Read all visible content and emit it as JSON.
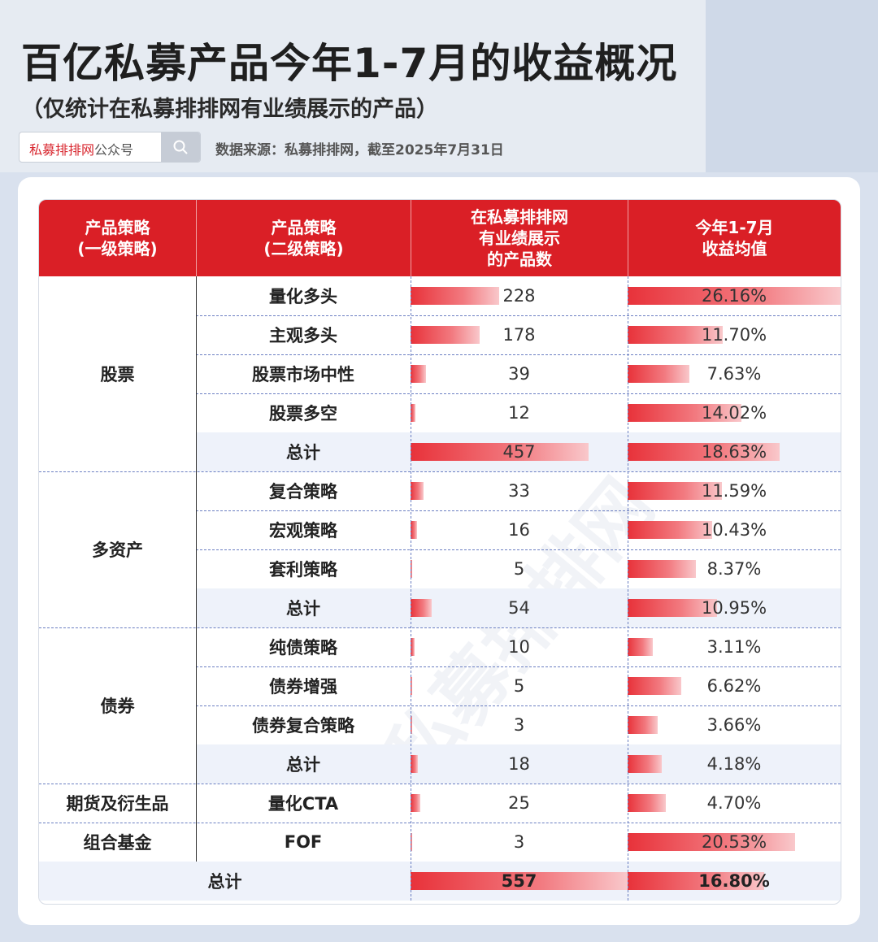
{
  "header": {
    "title": "百亿私募产品今年1-7月的收益概况",
    "subtitle": "（仅统计在私募排排网有业绩展示的产品）",
    "search_brand": "私募排排网",
    "search_suffix": "公众号",
    "source": "数据来源：私募排排网，截至2025年7月31日"
  },
  "watermark": "私募排排网",
  "colors": {
    "header_red": "#da1f26",
    "bar_red": "#e8323a",
    "total_row": "#eef2fa"
  },
  "chart_data": {
    "type": "table",
    "columns": [
      "产品策略\n(一级策略)",
      "产品策略\n(二级策略)",
      "在私募排排网\n有业绩展示\n的产品数",
      "今年1-7月\n收益均值"
    ],
    "groups": [
      {
        "name": "股票",
        "rows": [
          {
            "sub": "量化多头",
            "count": 228,
            "ret": 26.16,
            "ret_label": "26.16%",
            "total": false
          },
          {
            "sub": "主观多头",
            "count": 178,
            "ret": 11.7,
            "ret_label": "11.70%",
            "total": false
          },
          {
            "sub": "股票市场中性",
            "count": 39,
            "ret": 7.63,
            "ret_label": "7.63%",
            "total": false
          },
          {
            "sub": "股票多空",
            "count": 12,
            "ret": 14.02,
            "ret_label": "14.02%",
            "total": false
          },
          {
            "sub": "总计",
            "count": 457,
            "ret": 18.63,
            "ret_label": "18.63%",
            "total": true
          }
        ]
      },
      {
        "name": "多资产",
        "rows": [
          {
            "sub": "复合策略",
            "count": 33,
            "ret": 11.59,
            "ret_label": "11.59%",
            "total": false
          },
          {
            "sub": "宏观策略",
            "count": 16,
            "ret": 10.43,
            "ret_label": "10.43%",
            "total": false
          },
          {
            "sub": "套利策略",
            "count": 5,
            "ret": 8.37,
            "ret_label": "8.37%",
            "total": false
          },
          {
            "sub": "总计",
            "count": 54,
            "ret": 10.95,
            "ret_label": "10.95%",
            "total": true
          }
        ]
      },
      {
        "name": "债券",
        "rows": [
          {
            "sub": "纯债策略",
            "count": 10,
            "ret": 3.11,
            "ret_label": "3.11%",
            "total": false
          },
          {
            "sub": "债券增强",
            "count": 5,
            "ret": 6.62,
            "ret_label": "6.62%",
            "total": false
          },
          {
            "sub": "债券复合策略",
            "count": 3,
            "ret": 3.66,
            "ret_label": "3.66%",
            "total": false
          },
          {
            "sub": "总计",
            "count": 18,
            "ret": 4.18,
            "ret_label": "4.18%",
            "total": true
          }
        ]
      },
      {
        "name": "期货及衍生品",
        "rows": [
          {
            "sub": "量化CTA",
            "count": 25,
            "ret": 4.7,
            "ret_label": "4.70%",
            "total": false
          }
        ]
      },
      {
        "name": "组合基金",
        "rows": [
          {
            "sub": "FOF",
            "count": 3,
            "ret": 20.53,
            "ret_label": "20.53%",
            "total": false
          }
        ]
      }
    ],
    "grand_total": {
      "label": "总计",
      "count": 557,
      "ret": 16.8,
      "ret_label": "16.80%"
    }
  }
}
